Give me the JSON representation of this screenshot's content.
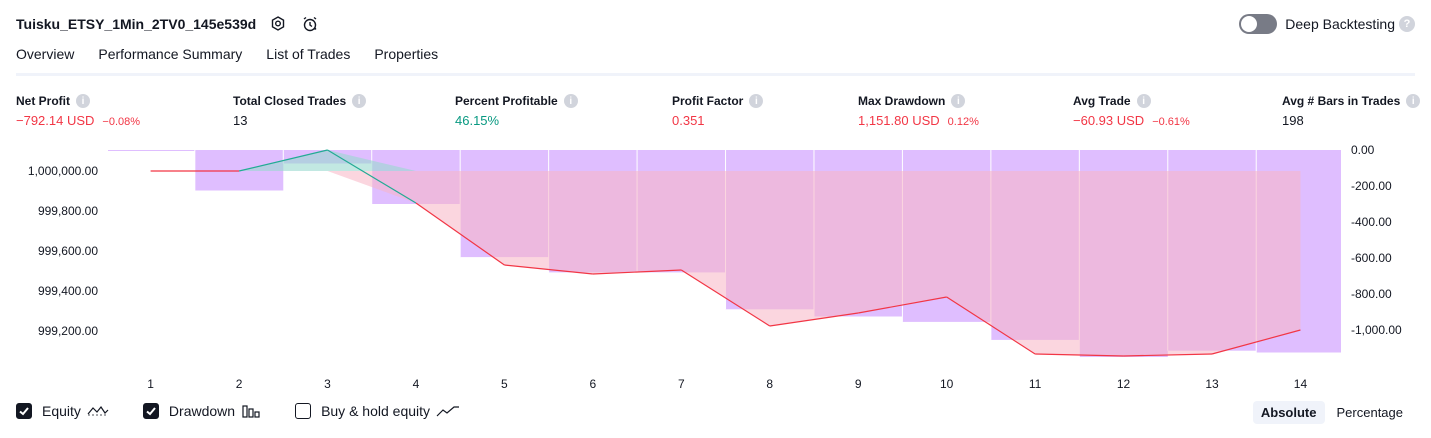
{
  "header": {
    "title": "Tuisku_ETSY_1Min_2TV0_145e539d",
    "deep_backtesting_label": "Deep Backtesting",
    "deep_backtesting_on": false
  },
  "tabs": [
    {
      "label": "Overview",
      "active": true
    },
    {
      "label": "Performance Summary",
      "active": false
    },
    {
      "label": "List of Trades",
      "active": false
    },
    {
      "label": "Properties",
      "active": false
    }
  ],
  "metrics": [
    {
      "label": "Net Profit",
      "value": "−792.14 USD",
      "pct": "−0.08%",
      "color": "red"
    },
    {
      "label": "Total Closed Trades",
      "value": "13",
      "pct": "",
      "color": "dark"
    },
    {
      "label": "Percent Profitable",
      "value": "46.15%",
      "pct": "",
      "color": "green"
    },
    {
      "label": "Profit Factor",
      "value": "0.351",
      "pct": "",
      "color": "red"
    },
    {
      "label": "Max Drawdown",
      "value": "1,151.80 USD",
      "pct": "0.12%",
      "color": "red"
    },
    {
      "label": "Avg Trade",
      "value": "−60.93 USD",
      "pct": "−0.61%",
      "color": "red"
    },
    {
      "label": "Avg # Bars in Trades",
      "value": "198",
      "pct": "",
      "color": "dark"
    }
  ],
  "chart_data": {
    "type": "line",
    "x": [
      1,
      2,
      3,
      4,
      5,
      6,
      7,
      8,
      9,
      10,
      11,
      12,
      13,
      14
    ],
    "x_tick_labels": [
      "1",
      "2",
      "3",
      "4",
      "5",
      "6",
      "7",
      "8",
      "9",
      "10",
      "11",
      "12",
      "13",
      "14"
    ],
    "y_left_ticks": [
      "1,000,000.00",
      "999,800.00",
      "999,600.00",
      "999,400.00",
      "999,200.00"
    ],
    "y_left_tick_values": [
      1000000,
      999800,
      999600,
      999400,
      999200
    ],
    "y_left_range": [
      999050,
      1000110
    ],
    "y_right_ticks": [
      "0.00",
      "-200.00",
      "-400.00",
      "-600.00",
      "-800.00",
      "-1,000.00"
    ],
    "y_right_tick_values": [
      0,
      -200,
      -400,
      -600,
      -800,
      -1000
    ],
    "y_right_range": [
      -1160,
      20
    ],
    "series": [
      {
        "name": "Equity",
        "values": [
          1000000,
          1000000,
          1000105,
          999840,
          999530,
          999485,
          999505,
          999225,
          999290,
          999370,
          999085,
          999075,
          999085,
          999205
        ],
        "color": "#f23645",
        "profit_color": "#22ab94"
      },
      {
        "name": "Drawdown",
        "values": [
          0,
          -225,
          -75,
          -300,
          -595,
          -680,
          -680,
          -885,
          -925,
          -955,
          -1055,
          -1150,
          -1115,
          -1125
        ],
        "color": "#c084fc"
      }
    ]
  },
  "legend": {
    "items": [
      {
        "label": "Equity",
        "checked": true,
        "icon": "equity-line-icon"
      },
      {
        "label": "Drawdown",
        "checked": true,
        "icon": "drawdown-bars-icon"
      },
      {
        "label": "Buy & hold equity",
        "checked": false,
        "icon": "buy-hold-line-icon"
      }
    ]
  },
  "modes": [
    {
      "label": "Absolute",
      "active": true
    },
    {
      "label": "Percentage",
      "active": false
    }
  ]
}
